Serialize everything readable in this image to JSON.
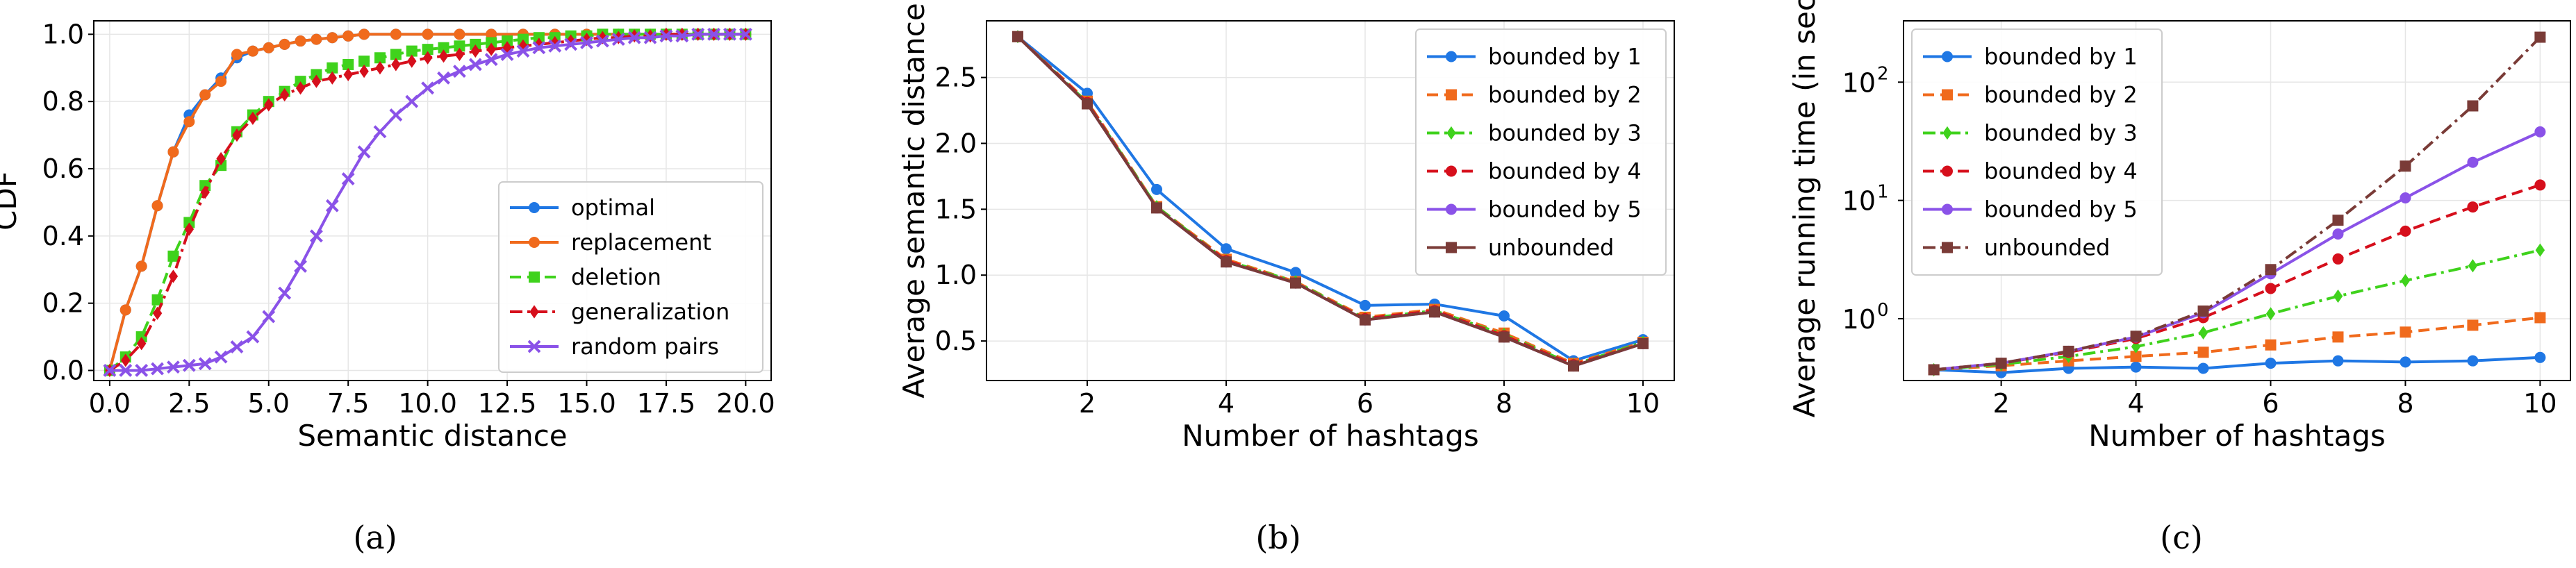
{
  "colors": {
    "blue": "#1f77e4",
    "orange": "#f06a1c",
    "green": "#3fd21c",
    "red": "#d60f1c",
    "purple": "#8a52e8",
    "brown": "#7a3b37"
  },
  "chart_data": [
    {
      "type": "line",
      "caption": "(a)",
      "xlabel": "Semantic distance",
      "ylabel": "CDF",
      "xlim": [
        -0.5,
        20.8
      ],
      "ylim": [
        -0.03,
        1.04
      ],
      "xticks": [
        0.0,
        2.5,
        5.0,
        7.5,
        10.0,
        12.5,
        15.0,
        17.5,
        20.0
      ],
      "xtick_labels": [
        "0.0",
        "2.5",
        "5.0",
        "7.5",
        "10.0",
        "12.5",
        "15.0",
        "17.5",
        "20.0"
      ],
      "yticks": [
        0.0,
        0.2,
        0.4,
        0.6,
        0.8,
        1.0
      ],
      "ytick_labels": [
        "0.0",
        "0.2",
        "0.4",
        "0.6",
        "0.8",
        "1.0"
      ],
      "grid": true,
      "legend": "lower right",
      "series": [
        {
          "name": "optimal",
          "color": "blue",
          "marker": "circle",
          "dash": "solid",
          "x": [
            0,
            0.5,
            1,
            1.5,
            2,
            2.5,
            3,
            3.5,
            4,
            4.5,
            5,
            5.5,
            6,
            6.5,
            7,
            7.5,
            8,
            9,
            10,
            11,
            12,
            13,
            14,
            15,
            16,
            17,
            18,
            19,
            20
          ],
          "y": [
            0,
            0.18,
            0.31,
            0.49,
            0.65,
            0.76,
            0.82,
            0.87,
            0.93,
            0.95,
            0.96,
            0.97,
            0.98,
            0.985,
            0.99,
            0.995,
            1.0,
            1.0,
            1.0,
            1.0,
            1.0,
            1.0,
            1.0,
            1.0,
            1.0,
            1.0,
            1.0,
            1.0,
            1.0
          ]
        },
        {
          "name": "replacement",
          "color": "orange",
          "marker": "circle",
          "dash": "solid",
          "x": [
            0,
            0.5,
            1,
            1.5,
            2,
            2.5,
            3,
            3.5,
            4,
            4.5,
            5,
            5.5,
            6,
            6.5,
            7,
            7.5,
            8,
            9,
            10,
            11,
            12,
            13,
            14,
            15,
            16,
            17,
            18,
            19,
            20
          ],
          "y": [
            0,
            0.18,
            0.31,
            0.49,
            0.65,
            0.74,
            0.82,
            0.86,
            0.94,
            0.95,
            0.96,
            0.97,
            0.98,
            0.985,
            0.99,
            0.995,
            1.0,
            1.0,
            1.0,
            1.0,
            1.0,
            1.0,
            1.0,
            1.0,
            1.0,
            1.0,
            1.0,
            1.0,
            1.0
          ]
        },
        {
          "name": "deletion",
          "color": "green",
          "marker": "square",
          "dash": "dashed",
          "x": [
            0,
            0.5,
            1,
            1.5,
            2,
            2.5,
            3,
            3.5,
            4,
            4.5,
            5,
            5.5,
            6,
            6.5,
            7,
            7.5,
            8,
            8.5,
            9,
            9.5,
            10,
            10.5,
            11,
            11.5,
            12,
            12.5,
            13,
            13.5,
            14,
            14.5,
            15,
            15.5,
            16,
            16.5,
            17,
            17.5,
            18,
            18.5,
            19,
            19.5,
            20
          ],
          "y": [
            0,
            0.04,
            0.1,
            0.21,
            0.34,
            0.44,
            0.55,
            0.61,
            0.71,
            0.76,
            0.8,
            0.83,
            0.86,
            0.88,
            0.9,
            0.91,
            0.92,
            0.93,
            0.94,
            0.95,
            0.955,
            0.96,
            0.965,
            0.97,
            0.975,
            0.98,
            0.985,
            0.99,
            0.99,
            0.995,
            0.995,
            1.0,
            1.0,
            1.0,
            1.0,
            1.0,
            1.0,
            1.0,
            1.0,
            1.0,
            1.0
          ]
        },
        {
          "name": "generalization",
          "color": "red",
          "marker": "diamond",
          "dash": "dashdot",
          "x": [
            0,
            0.5,
            1,
            1.5,
            2,
            2.5,
            3,
            3.5,
            4,
            4.5,
            5,
            5.5,
            6,
            6.5,
            7,
            7.5,
            8,
            8.5,
            9,
            9.5,
            10,
            10.5,
            11,
            11.5,
            12,
            12.5,
            13,
            13.5,
            14,
            14.5,
            15,
            15.5,
            16,
            16.5,
            17,
            17.5,
            18,
            18.5,
            19,
            19.5,
            20
          ],
          "y": [
            0,
            0.03,
            0.08,
            0.17,
            0.28,
            0.42,
            0.53,
            0.63,
            0.7,
            0.75,
            0.79,
            0.82,
            0.84,
            0.86,
            0.87,
            0.88,
            0.89,
            0.9,
            0.91,
            0.92,
            0.93,
            0.935,
            0.94,
            0.95,
            0.955,
            0.96,
            0.965,
            0.97,
            0.975,
            0.98,
            0.985,
            0.99,
            0.99,
            0.995,
            0.995,
            1.0,
            1.0,
            1.0,
            1.0,
            1.0,
            1.0
          ]
        },
        {
          "name": "random pairs",
          "color": "purple",
          "marker": "x",
          "dash": "solid",
          "x": [
            0,
            0.5,
            1,
            1.5,
            2,
            2.5,
            3,
            3.5,
            4,
            4.5,
            5,
            5.5,
            6,
            6.5,
            7,
            7.5,
            8,
            8.5,
            9,
            9.5,
            10,
            10.5,
            11,
            11.5,
            12,
            12.5,
            13,
            13.5,
            14,
            14.5,
            15,
            15.5,
            16,
            16.5,
            17,
            17.5,
            18,
            18.5,
            19,
            19.5,
            20
          ],
          "y": [
            0,
            0.0,
            0.0,
            0.005,
            0.01,
            0.015,
            0.02,
            0.04,
            0.07,
            0.1,
            0.16,
            0.23,
            0.31,
            0.4,
            0.49,
            0.57,
            0.65,
            0.71,
            0.76,
            0.8,
            0.84,
            0.87,
            0.89,
            0.91,
            0.925,
            0.94,
            0.95,
            0.96,
            0.965,
            0.97,
            0.975,
            0.98,
            0.985,
            0.99,
            0.99,
            0.995,
            0.995,
            1.0,
            1.0,
            1.0,
            1.0
          ]
        }
      ]
    },
    {
      "type": "line",
      "caption": "(b)",
      "xlabel": "Number of hashtags",
      "ylabel": "Average semantic distance",
      "xlim": [
        0.55,
        10.45
      ],
      "ylim": [
        0.2,
        2.93
      ],
      "xticks": [
        2,
        4,
        6,
        8,
        10
      ],
      "xtick_labels": [
        "2",
        "4",
        "6",
        "8",
        "10"
      ],
      "yticks": [
        0.5,
        1.0,
        1.5,
        2.0,
        2.5
      ],
      "ytick_labels": [
        "0.5",
        "1.0",
        "1.5",
        "2.0",
        "2.5"
      ],
      "grid": true,
      "legend": "upper right",
      "x": [
        1,
        2,
        3,
        4,
        5,
        6,
        7,
        8,
        9,
        10
      ],
      "series": [
        {
          "name": "bounded by 1",
          "color": "blue",
          "marker": "circle",
          "dash": "solid",
          "values": [
            2.81,
            2.38,
            1.65,
            1.2,
            1.02,
            0.77,
            0.78,
            0.69,
            0.35,
            0.51
          ]
        },
        {
          "name": "bounded by 2",
          "color": "orange",
          "marker": "square",
          "dash": "dashed",
          "values": [
            2.81,
            2.32,
            1.52,
            1.12,
            0.95,
            0.68,
            0.74,
            0.56,
            0.33,
            0.49
          ]
        },
        {
          "name": "bounded by 3",
          "color": "green",
          "marker": "diamond",
          "dash": "dashdot",
          "values": [
            2.81,
            2.31,
            1.52,
            1.11,
            0.95,
            0.67,
            0.73,
            0.55,
            0.32,
            0.49
          ]
        },
        {
          "name": "bounded by 4",
          "color": "red",
          "marker": "circle",
          "dash": "dashed",
          "values": [
            2.81,
            2.31,
            1.51,
            1.11,
            0.94,
            0.67,
            0.73,
            0.54,
            0.32,
            0.48
          ]
        },
        {
          "name": "bounded by 5",
          "color": "purple",
          "marker": "circle",
          "dash": "solid",
          "values": [
            2.81,
            2.3,
            1.51,
            1.1,
            0.94,
            0.66,
            0.72,
            0.53,
            0.31,
            0.48
          ]
        },
        {
          "name": "unbounded",
          "color": "brown",
          "marker": "square",
          "dash": "solid",
          "values": [
            2.81,
            2.3,
            1.51,
            1.1,
            0.94,
            0.66,
            0.72,
            0.53,
            0.31,
            0.48
          ]
        }
      ]
    },
    {
      "type": "line",
      "caption": "(c)",
      "xlabel": "Number of hashtags",
      "ylabel": "Average running time (in sec)",
      "scale_y": "log",
      "xlim": [
        0.55,
        10.45
      ],
      "ylim": [
        0.3,
        330
      ],
      "xticks": [
        2,
        4,
        6,
        8,
        10
      ],
      "xtick_labels": [
        "2",
        "4",
        "6",
        "8",
        "10"
      ],
      "yticks": [
        1,
        10,
        100
      ],
      "ytick_labels": [
        [
          "10",
          "0"
        ],
        [
          "10",
          "1"
        ],
        [
          "10",
          "2"
        ]
      ],
      "grid": true,
      "legend": "upper left",
      "x": [
        1,
        2,
        3,
        4,
        5,
        6,
        7,
        8,
        9,
        10
      ],
      "series": [
        {
          "name": "bounded by 1",
          "color": "blue",
          "marker": "circle",
          "dash": "solid",
          "values": [
            0.37,
            0.35,
            0.38,
            0.39,
            0.38,
            0.42,
            0.44,
            0.43,
            0.44,
            0.47
          ]
        },
        {
          "name": "bounded by 2",
          "color": "orange",
          "marker": "square",
          "dash": "dashed",
          "values": [
            0.37,
            0.4,
            0.44,
            0.48,
            0.52,
            0.6,
            0.7,
            0.77,
            0.88,
            1.02
          ]
        },
        {
          "name": "bounded by 3",
          "color": "green",
          "marker": "diamond",
          "dash": "dashdot",
          "values": [
            0.37,
            0.41,
            0.48,
            0.58,
            0.76,
            1.1,
            1.55,
            2.1,
            2.8,
            3.8
          ]
        },
        {
          "name": "bounded by 4",
          "color": "red",
          "marker": "circle",
          "dash": "dashed",
          "values": [
            0.37,
            0.42,
            0.52,
            0.68,
            1.02,
            1.8,
            3.2,
            5.5,
            8.8,
            13.5
          ]
        },
        {
          "name": "bounded by 5",
          "color": "purple",
          "marker": "circle",
          "dash": "solid",
          "values": [
            0.37,
            0.42,
            0.53,
            0.7,
            1.12,
            2.4,
            5.2,
            10.5,
            21,
            38
          ]
        },
        {
          "name": "unbounded",
          "color": "brown",
          "marker": "square",
          "dash": "dashdot",
          "values": [
            0.37,
            0.42,
            0.53,
            0.71,
            1.16,
            2.6,
            6.8,
            19.5,
            63,
            240
          ]
        }
      ]
    }
  ]
}
